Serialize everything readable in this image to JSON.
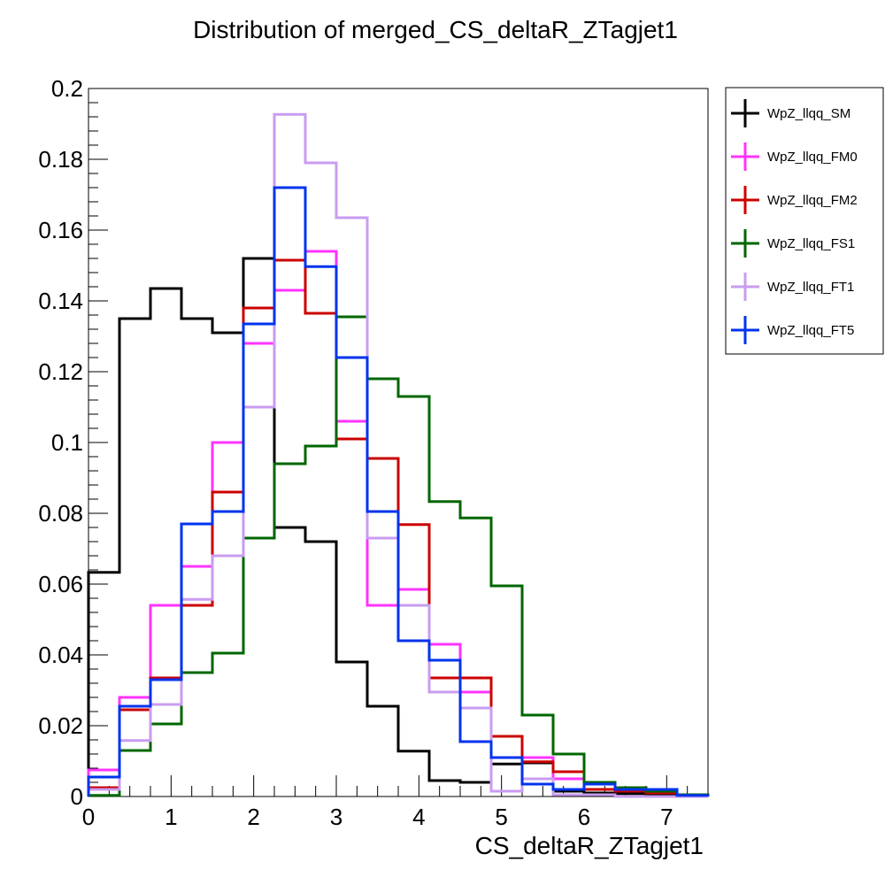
{
  "chart_data": {
    "type": "line",
    "title": "Distribution of merged_CS_deltaR_ZTagjet1",
    "xlabel": "CS_deltaR_ZTagjet1",
    "ylabel": "",
    "xlim": [
      0,
      7.5
    ],
    "ylim": [
      0,
      0.2
    ],
    "xticks": [
      "0",
      "1",
      "2",
      "3",
      "4",
      "5",
      "6",
      "7"
    ],
    "yticks": [
      "0",
      "0.02",
      "0.04",
      "0.06",
      "0.08",
      "0.1",
      "0.12",
      "0.14",
      "0.16",
      "0.18",
      "0.2"
    ],
    "bin_edges": [
      0,
      0.375,
      0.75,
      1.125,
      1.5,
      1.875,
      2.25,
      2.625,
      3.0,
      3.375,
      3.75,
      4.125,
      4.5,
      4.875,
      5.25,
      5.625,
      6.0,
      6.375,
      6.75,
      7.125,
      7.5
    ],
    "legend_position": "right",
    "series": [
      {
        "name": "WpZ_llqq_SM",
        "color": "#000000",
        "values": [
          0.0633,
          0.135,
          0.1435,
          0.135,
          0.131,
          0.152,
          0.076,
          0.072,
          0.038,
          0.0255,
          0.0128,
          0.0045,
          0.004,
          0.0092,
          0.0095,
          0.0015,
          0.001,
          0.0008,
          0.0005,
          0.0003
        ]
      },
      {
        "name": "WpZ_llqq_FM0",
        "color": "#ff33ff",
        "values": [
          0.0075,
          0.028,
          0.054,
          0.065,
          0.1,
          0.128,
          0.143,
          0.154,
          0.106,
          0.054,
          0.0585,
          0.043,
          0.0295,
          0.011,
          0.011,
          0.005,
          0.002,
          0.0015,
          0.001,
          0.0005
        ]
      },
      {
        "name": "WpZ_llqq_FM2",
        "color": "#cc0000",
        "values": [
          0.0025,
          0.0245,
          0.0335,
          0.054,
          0.086,
          0.138,
          0.1515,
          0.1365,
          0.101,
          0.0955,
          0.0768,
          0.0335,
          0.0335,
          0.017,
          0.0098,
          0.007,
          0.002,
          0.0015,
          0.001,
          0.0005
        ]
      },
      {
        "name": "WpZ_llqq_FS1",
        "color": "#006600",
        "values": [
          0.0003,
          0.013,
          0.0205,
          0.035,
          0.0405,
          0.073,
          0.094,
          0.099,
          0.1355,
          0.118,
          0.113,
          0.0833,
          0.0787,
          0.0595,
          0.023,
          0.012,
          0.004,
          0.0025,
          0.0015,
          0.0005
        ]
      },
      {
        "name": "WpZ_llqq_FT1",
        "color": "#c99cf0",
        "values": [
          0.002,
          0.0158,
          0.026,
          0.0557,
          0.068,
          0.11,
          0.1927,
          0.179,
          0.1635,
          0.073,
          0.054,
          0.0295,
          0.025,
          0.0015,
          0.005,
          0.0005,
          0.0005,
          0.0,
          0.0,
          0.0
        ]
      },
      {
        "name": "WpZ_llqq_FT5",
        "color": "#0033ee",
        "values": [
          0.0055,
          0.0255,
          0.033,
          0.077,
          0.0805,
          0.1335,
          0.172,
          0.1497,
          0.124,
          0.0805,
          0.044,
          0.0385,
          0.0155,
          0.011,
          0.0035,
          0.002,
          0.0035,
          0.002,
          0.002,
          0.0003
        ]
      }
    ]
  }
}
